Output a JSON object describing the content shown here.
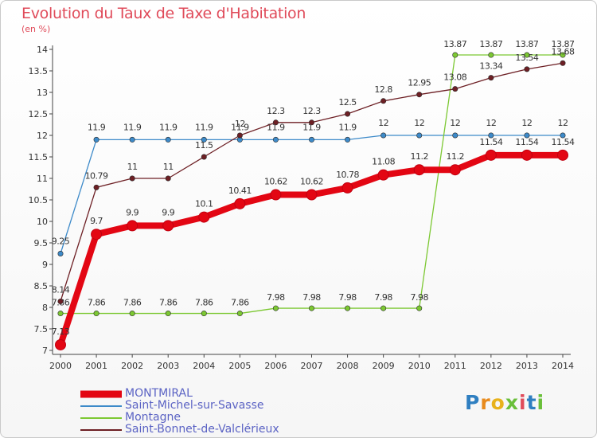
{
  "title": "Evolution du Taux de Taxe d'Habitation",
  "subtitle": "(en %)",
  "logo": {
    "letters": [
      "P",
      "r",
      "o",
      "x",
      "i",
      "t",
      "i"
    ],
    "colors": [
      "#2f7fc1",
      "#e88a1c",
      "#e8b21c",
      "#6abf3a",
      "#e04b5a",
      "#2f7fc1",
      "#6abf3a"
    ]
  },
  "chart_data": {
    "type": "line",
    "x": [
      2000,
      2001,
      2002,
      2003,
      2004,
      2005,
      2006,
      2007,
      2008,
      2009,
      2010,
      2011,
      2012,
      2013,
      2014
    ],
    "ylim": [
      7,
      14
    ],
    "yticks": [
      7,
      7.5,
      8,
      8.5,
      9,
      9.5,
      10,
      10.5,
      11,
      11.5,
      12,
      12.5,
      13,
      13.5,
      14
    ],
    "grid": false,
    "legend_position": "bottom-left",
    "series": [
      {
        "name": "MONTMIRAL",
        "color": "#e30613",
        "values": [
          7.13,
          9.7,
          9.9,
          9.9,
          10.1,
          10.41,
          10.62,
          10.62,
          10.78,
          11.08,
          11.2,
          11.2,
          11.54,
          11.54,
          11.54
        ],
        "labels": [
          "7.13",
          "9.7",
          "9.9",
          "9.9",
          "10.1",
          "10.41",
          "10.62",
          "10.62",
          "10.78",
          "11.08",
          "11.2",
          "11.2",
          "11.54",
          "11.54",
          "11.54"
        ]
      },
      {
        "name": "Saint-Michel-sur-Savasse",
        "color": "#3d8ac9",
        "values": [
          9.25,
          11.9,
          11.9,
          11.9,
          11.9,
          11.9,
          11.9,
          11.9,
          11.9,
          12,
          12,
          12,
          12,
          12,
          12
        ],
        "labels": [
          "9.25",
          "11.9",
          "11.9",
          "11.9",
          "11.9",
          "11.9",
          "11.9",
          "11.9",
          "11.9",
          "12",
          "12",
          "12",
          "12",
          "12",
          "12"
        ]
      },
      {
        "name": "Montagne",
        "color": "#7cc832",
        "values": [
          7.86,
          7.86,
          7.86,
          7.86,
          7.86,
          7.86,
          7.98,
          7.98,
          7.98,
          7.98,
          7.98,
          13.87,
          13.87,
          13.87,
          13.87
        ],
        "labels": [
          "7.86",
          "7.86",
          "7.86",
          "7.86",
          "7.86",
          "7.86",
          "7.98",
          "7.98",
          "7.98",
          "7.98",
          "7.98",
          "13.87",
          "13.87",
          "13.87",
          "13.87"
        ]
      },
      {
        "name": "Saint-Bonnet-de-Valclérieux",
        "color": "#6d1f24",
        "values": [
          8.14,
          10.79,
          11,
          11,
          11.5,
          12,
          12.3,
          12.3,
          12.5,
          12.8,
          12.95,
          13.08,
          13.34,
          13.54,
          13.68
        ],
        "labels": [
          "8.14",
          "10.79",
          "11",
          "11",
          "11.5",
          "12",
          "12.3",
          "12.3",
          "12.5",
          "12.8",
          "12.95",
          "13.08",
          "13.34",
          "13.54",
          "13.68"
        ]
      }
    ]
  }
}
